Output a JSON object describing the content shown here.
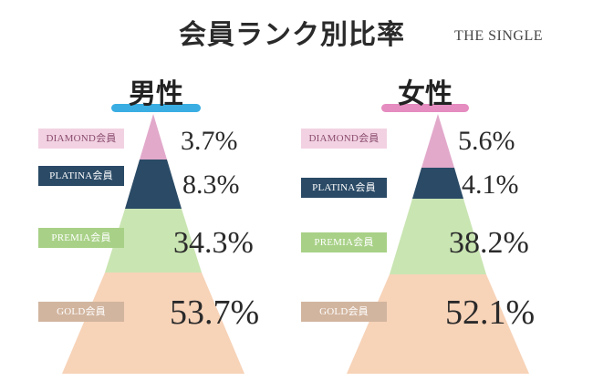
{
  "title": "会員ランク別比率",
  "brand": "THE SINGLE",
  "colors": {
    "diamond": "#e2a9cb",
    "platina": "#2a4a66",
    "premia": "#c9e5b2",
    "gold": "#f7d3b8",
    "male_accent": "#3aaee3",
    "female_accent": "#e58cc0"
  },
  "male": {
    "label": "男性",
    "ranks": [
      {
        "name": "DIAMOND会員",
        "percent": "3.7%"
      },
      {
        "name": "PLATINA会員",
        "percent": "8.3%"
      },
      {
        "name": "PREMIA会員",
        "percent": "34.3%"
      },
      {
        "name": "GOLD会員",
        "percent": "53.7%"
      }
    ]
  },
  "female": {
    "label": "女性",
    "ranks": [
      {
        "name": "DIAMOND会員",
        "percent": "5.6%"
      },
      {
        "name": "PLATINA会員",
        "percent": "4.1%"
      },
      {
        "name": "PREMIA会員",
        "percent": "38.2%"
      },
      {
        "name": "GOLD会員",
        "percent": "52.1%"
      }
    ]
  }
}
